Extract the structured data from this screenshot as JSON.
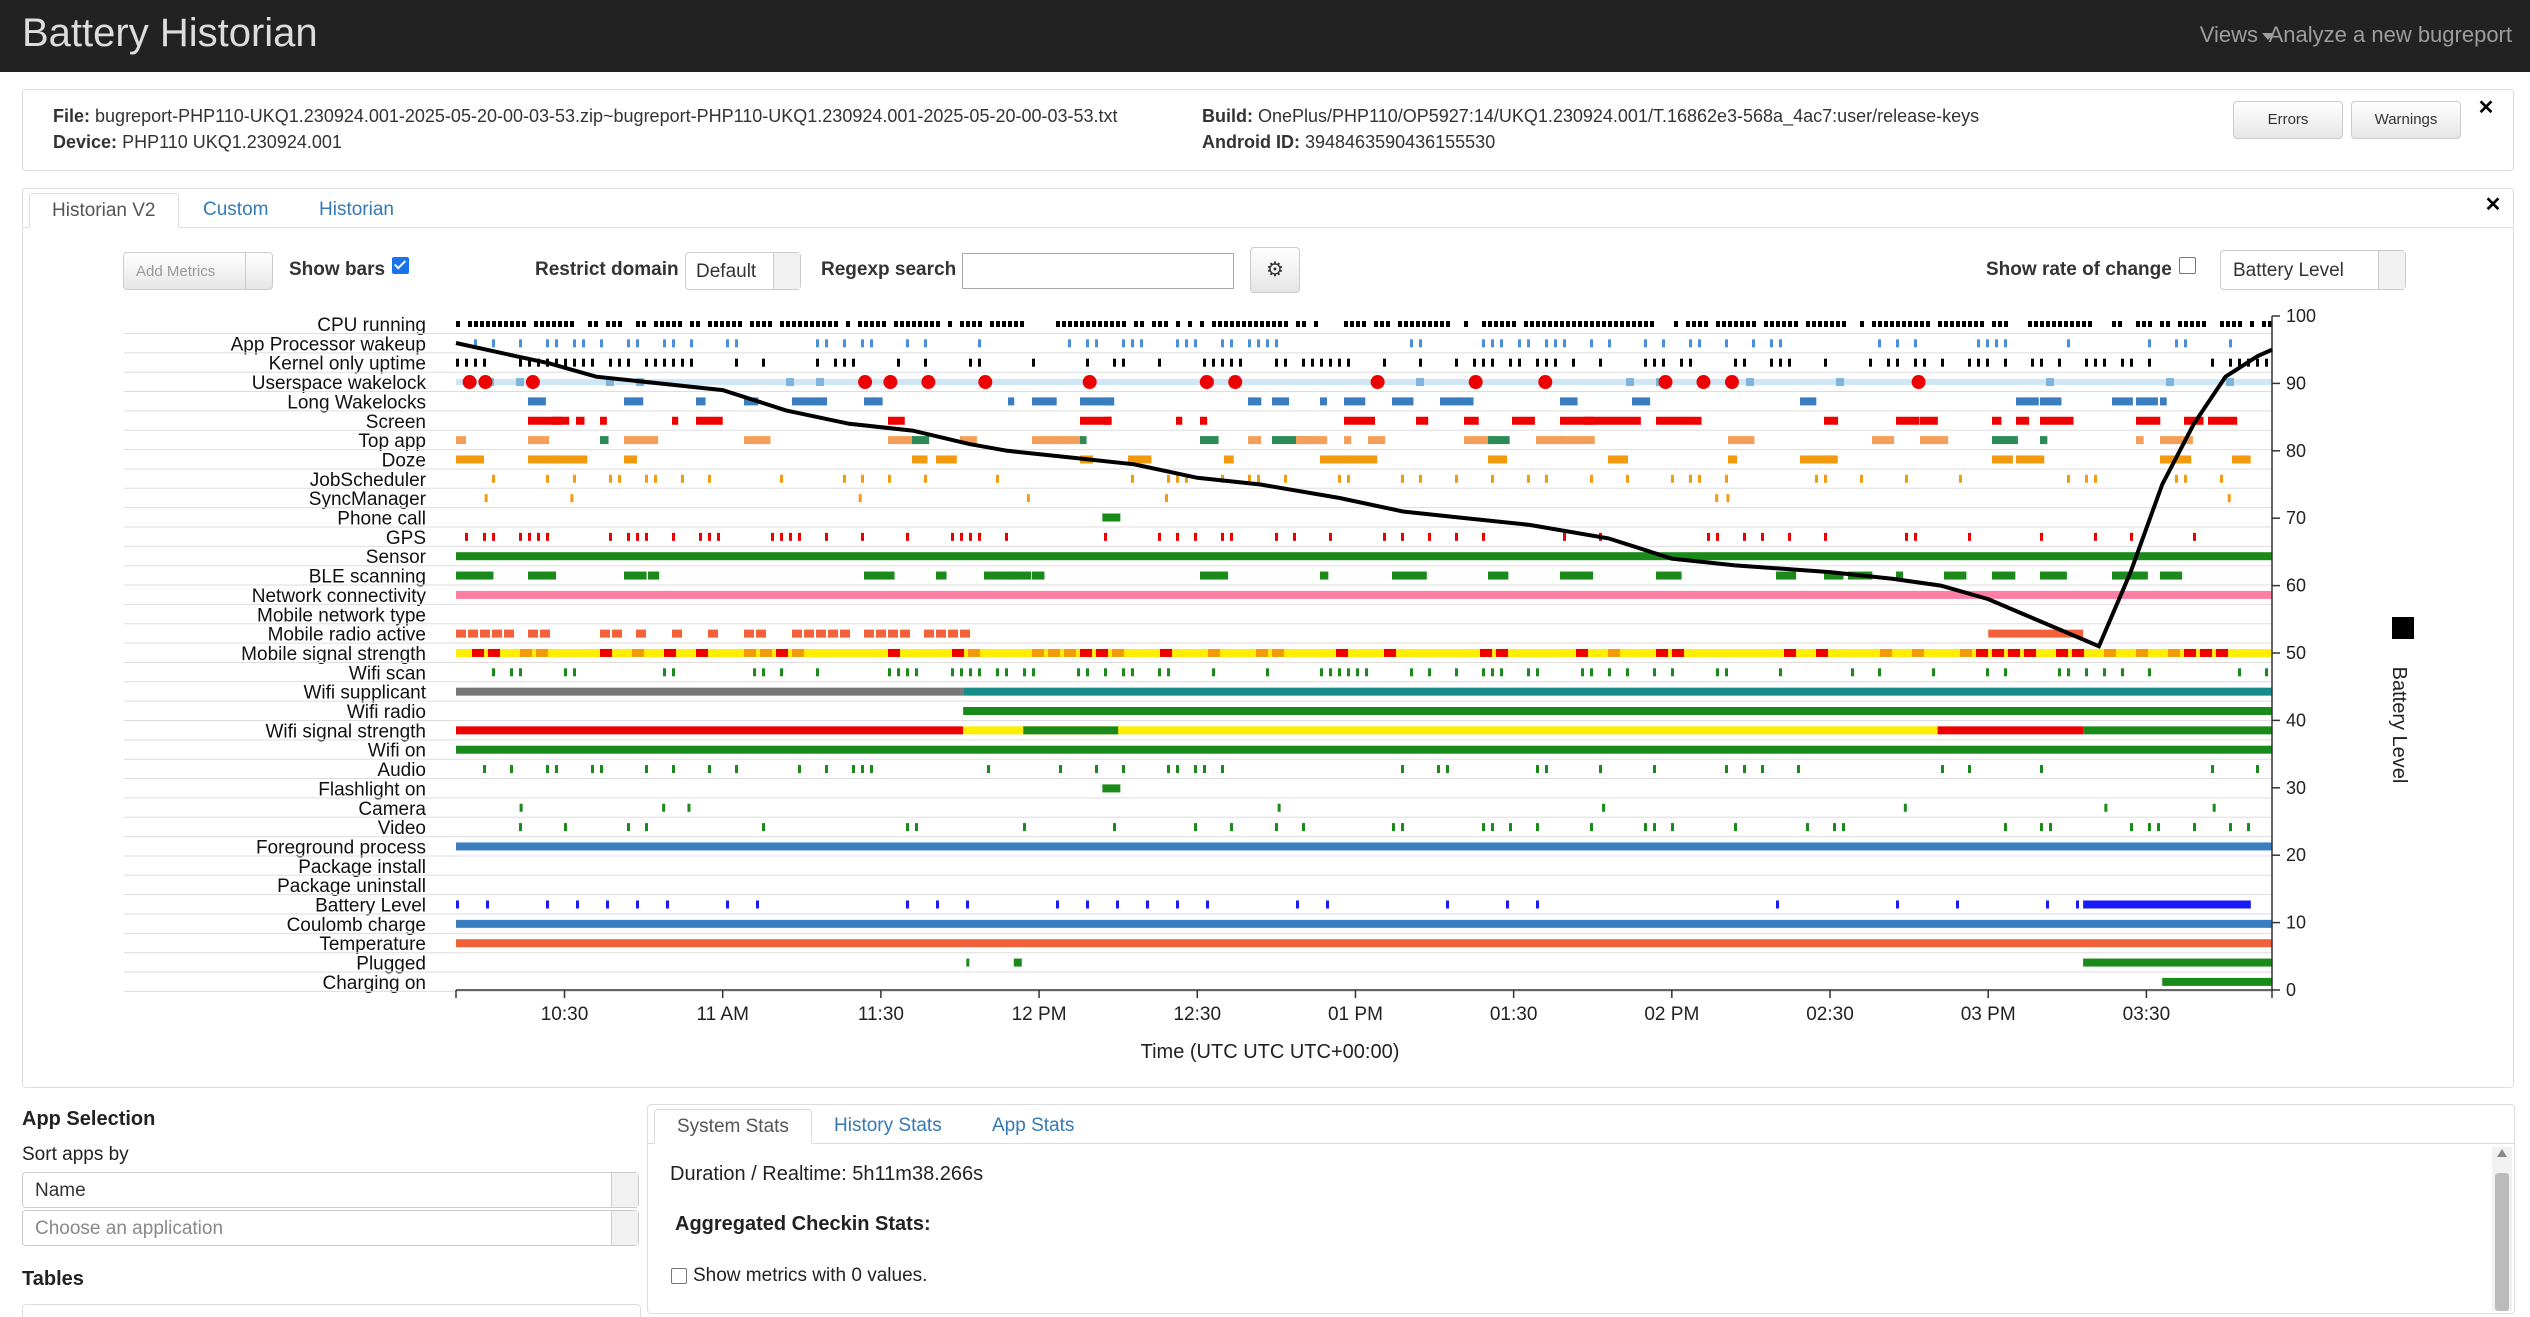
{
  "app": {
    "title": "Battery Historian",
    "nav_views": "Views",
    "nav_analyze": "Analyze a new bugreport"
  },
  "file_info": {
    "file_label": "File:",
    "file_value": "bugreport-PHP110-UKQ1.230924.001-2025-05-20-00-03-53.zip~bugreport-PHP110-UKQ1.230924.001-2025-05-20-00-03-53.txt",
    "device_label": "Device:",
    "device_value": "PHP110 UKQ1.230924.001",
    "build_label": "Build:",
    "build_value": "OnePlus/PHP110/OP5927:14/UKQ1.230924.001/T.16862e3-568a_4ac7:user/release-keys",
    "android_id_label": "Android ID:",
    "android_id_value": "3948463590436155530",
    "errors_btn": "Errors",
    "warnings_btn": "Warnings",
    "close": "✕"
  },
  "tabs": [
    {
      "label": "Historian V2",
      "active": true
    },
    {
      "label": "Custom"
    },
    {
      "label": "Historian"
    }
  ],
  "controls": {
    "add_metrics": "Add Metrics",
    "show_bars": "Show bars",
    "show_bars_checked": true,
    "restrict_domain": "Restrict domain",
    "domain_value": "Default",
    "regexp_search": "Regexp search",
    "regexp_value": "",
    "show_rate": "Show rate of change",
    "show_rate_checked": false,
    "metric_select": "Battery Level",
    "settings_icon": "gear-icon",
    "close": "✕"
  },
  "chart_data": {
    "type": "timeline",
    "rows": [
      "CPU running",
      "App Processor wakeup",
      "Kernel only uptime",
      "Userspace wakelock",
      "Long Wakelocks",
      "Screen",
      "Top app",
      "Doze",
      "JobScheduler",
      "SyncManager",
      "Phone call",
      "GPS",
      "Sensor",
      "BLE scanning",
      "Network connectivity",
      "Mobile network type",
      "Mobile radio active",
      "Mobile signal strength",
      "Wifi scan",
      "Wifi supplicant",
      "Wifi radio",
      "Wifi signal strength",
      "Wifi on",
      "Audio",
      "Flashlight on",
      "Camera",
      "Video",
      "Foreground process",
      "Package install",
      "Package uninstall",
      "Battery Level",
      "Coulomb charge",
      "Temperature",
      "Plugged",
      "Charging on"
    ],
    "x_ticks": [
      "10:30",
      "11 AM",
      "11:30",
      "12 PM",
      "12:30",
      "01 PM",
      "01:30",
      "02 PM",
      "02:30",
      "03 PM",
      "03:30"
    ],
    "x_ticks_hours": [
      10.5,
      11,
      11.5,
      12,
      12.5,
      13,
      13.5,
      14,
      14.5,
      15,
      15.5
    ],
    "xlim_hours": [
      10.157,
      15.897
    ],
    "xlabel": "Time (UTC UTC UTC+00:00)",
    "ylabel": "Battery Level",
    "y_ticks": [
      0,
      10,
      20,
      30,
      40,
      50,
      60,
      70,
      80,
      90,
      100
    ],
    "ylim": [
      0,
      100
    ],
    "series": [
      {
        "values_x_hours": [
          10.157,
          10.35,
          10.45,
          10.6,
          10.8,
          11.0,
          11.2,
          11.4,
          11.6,
          11.78,
          11.9,
          12.1,
          12.3,
          12.5,
          12.7,
          12.95,
          13.15,
          13.35,
          13.55,
          13.8,
          14.0,
          14.2,
          14.5,
          14.7,
          14.85,
          15.0,
          15.1,
          15.3,
          15.35,
          15.45,
          15.55,
          15.65,
          15.75,
          15.85,
          15.897
        ],
        "values_y": [
          96,
          94,
          93,
          91,
          90,
          89,
          86,
          84,
          83,
          81,
          80,
          79,
          78,
          76,
          75,
          73,
          71,
          70,
          69,
          67,
          64,
          63,
          62,
          61,
          60,
          58,
          56,
          52,
          51,
          62,
          75,
          84,
          91,
          94,
          95
        ]
      }
    ],
    "legend": "right"
  },
  "left_panel": {
    "title": "App Selection",
    "sort_label": "Sort apps by",
    "sort_value": "Name",
    "choose_placeholder": "Choose an application",
    "tables": "Tables"
  },
  "stats": {
    "tabs": [
      {
        "label": "System Stats",
        "active": true
      },
      {
        "label": "History Stats"
      },
      {
        "label": "App Stats"
      }
    ],
    "duration": "Duration / Realtime: 5h11m38.266s",
    "aggregated": "Aggregated Checkin Stats:",
    "show_zero": "Show metrics with 0 values."
  }
}
